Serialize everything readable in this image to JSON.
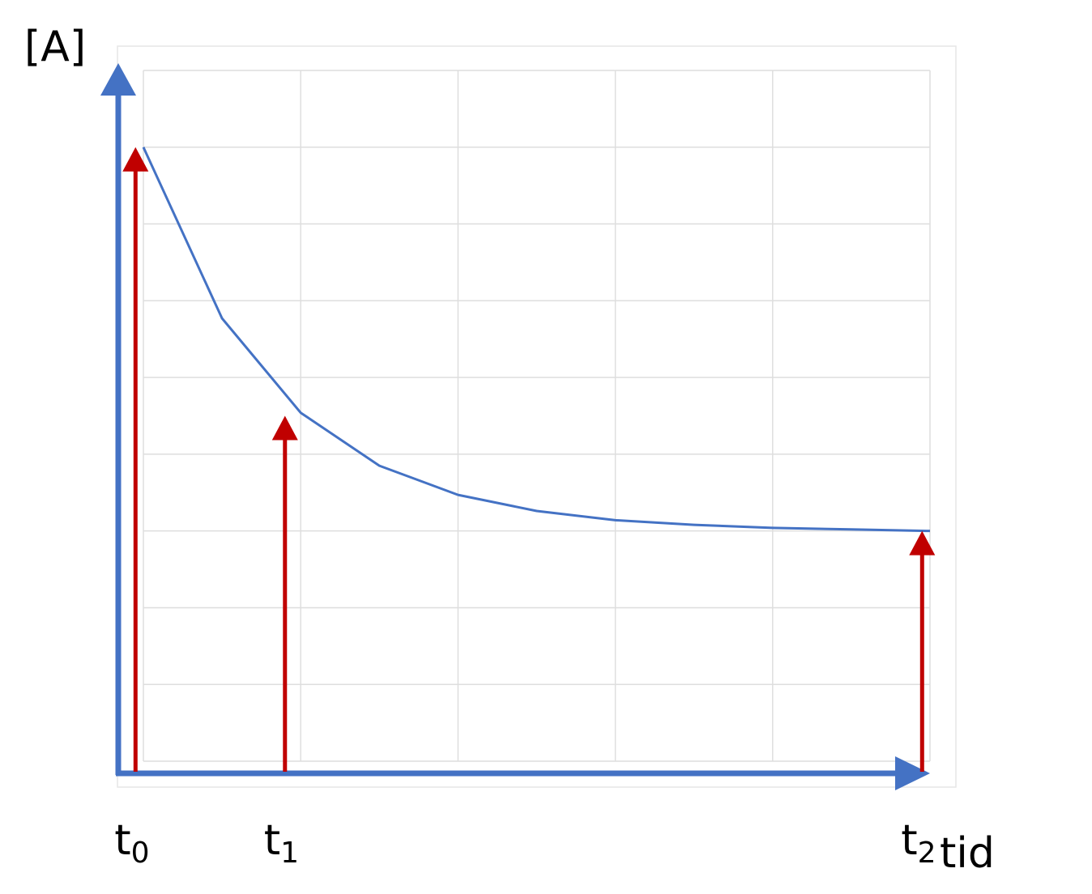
{
  "chart_data": {
    "type": "line",
    "ylabel": "[A]",
    "xlabel": "tid",
    "grid": true,
    "xlim": [
      0,
      5
    ],
    "ylim": [
      0,
      9
    ],
    "axis_color": "#4472C4",
    "curve_color": "#4472C4",
    "arrow_color": "#C00000",
    "curve": {
      "x": [
        0,
        0.5,
        1,
        1.5,
        2,
        2.5,
        3,
        3.5,
        4,
        4.5,
        5
      ],
      "y": [
        8,
        5.77,
        4.54,
        3.85,
        3.47,
        3.26,
        3.14,
        3.08,
        3.04,
        3.02,
        3.0
      ]
    },
    "markers": [
      {
        "label": "t",
        "sub": "0",
        "x": -0.05,
        "y": 8
      },
      {
        "label": "t",
        "sub": "1",
        "x": 0.9,
        "y": 4.5
      },
      {
        "label": "t",
        "sub": "2",
        "x": 4.95,
        "y": 3
      }
    ]
  }
}
